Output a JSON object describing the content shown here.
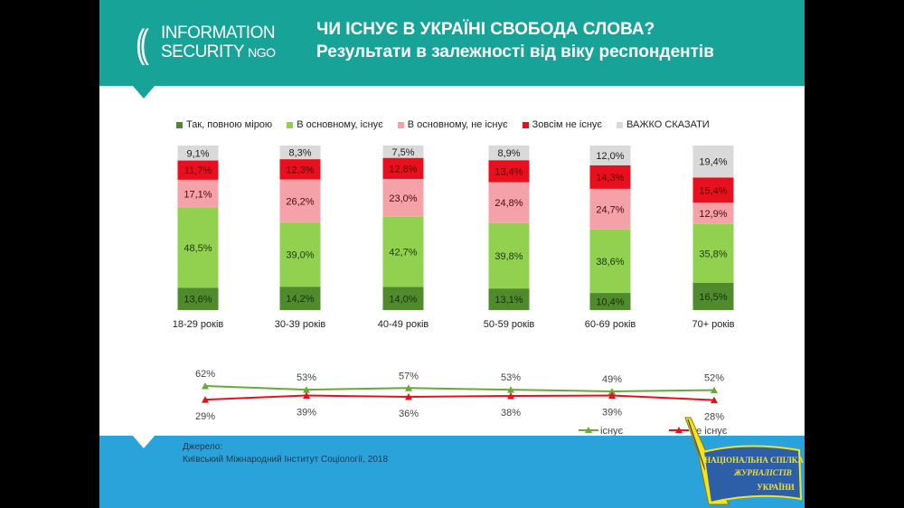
{
  "logo": {
    "line1": "INFORMATION",
    "line2": "SECURITY",
    "ngo": "NGO"
  },
  "header": {
    "title": "ЧИ ІСНУЄ В УКРАЇНІ СВОБОДА СЛОВА?",
    "subtitle": "Результати в залежності від віку респондентів"
  },
  "colors": {
    "header": "#17a398",
    "footer": "#29a3d9"
  },
  "chart_data": [
    {
      "type": "bar",
      "stacked": true,
      "percent": true,
      "categories": [
        "18-29 років",
        "30-39 років",
        "40-49 років",
        "50-59 років",
        "60-69 років",
        "70+ років"
      ],
      "series": [
        {
          "name": "Так, повною мірою",
          "color": "#4f8b2c",
          "text": "#163008",
          "values": [
            13.6,
            14.2,
            14.0,
            13.1,
            10.4,
            16.5
          ]
        },
        {
          "name": "В основному, існує",
          "color": "#92d050",
          "text": "#1d3a0c",
          "values": [
            48.5,
            39.0,
            42.7,
            39.8,
            38.6,
            35.8
          ]
        },
        {
          "name": "В основному, не існує",
          "color": "#f4a1a8",
          "text": "#4a0c10",
          "values": [
            17.1,
            26.2,
            23.0,
            24.8,
            24.7,
            12.9
          ]
        },
        {
          "name": "Зовсім не існує",
          "color": "#e8101e",
          "text": "#5a0000",
          "values": [
            11.7,
            12.3,
            12.8,
            13.4,
            14.3,
            15.4
          ]
        },
        {
          "name": "ВАЖКО СКАЗАТИ",
          "color": "#d9d9d9",
          "text": "#222222",
          "values": [
            9.1,
            8.3,
            7.5,
            8.9,
            12.0,
            19.4
          ]
        }
      ],
      "legend": "top"
    },
    {
      "type": "line",
      "categories": [
        "18-29 років",
        "30-39 років",
        "40-49 років",
        "50-59 років",
        "60-69 років",
        "70+ років"
      ],
      "series": [
        {
          "name": "існує",
          "color": "#6aa83a",
          "values": [
            62,
            53,
            57,
            53,
            49,
            52
          ]
        },
        {
          "name": "не існує",
          "color": "#e8101e",
          "values": [
            29,
            39,
            36,
            38,
            39,
            28
          ]
        }
      ],
      "legend": "bottom-right"
    }
  ],
  "source": {
    "label": "Джерело:",
    "text": "Київський Міжнародний Інститут Соціології, 2018"
  },
  "badge": {
    "text": [
      "НАЦІОНАЛЬНА СПІЛКА",
      "ЖУРНАЛІСТІВ",
      "УКРАЇНИ"
    ]
  }
}
